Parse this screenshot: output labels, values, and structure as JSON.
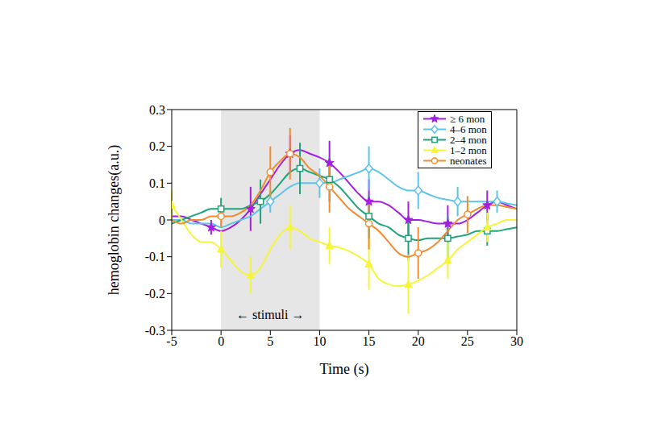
{
  "chart_data": {
    "type": "line",
    "xlabel": "Time (s)",
    "ylabel": "hemoglobin changes(a.u.)",
    "xlim": [
      -5,
      30
    ],
    "xticks": [
      -5,
      0,
      5,
      10,
      15,
      20,
      25,
      30
    ],
    "ylim": [
      -0.3,
      0.3
    ],
    "yticks": [
      -0.3,
      -0.2,
      -0.1,
      0,
      0.1,
      0.2,
      0.3
    ],
    "grid": false,
    "legend": "upper right",
    "stimulus": {
      "start": 0,
      "end": 10,
      "label": "← stimuli →"
    },
    "x": [
      -5,
      -4,
      -3,
      -2,
      -1,
      0,
      1,
      2,
      3,
      4,
      5,
      6,
      7,
      8,
      9,
      10,
      11,
      12,
      13,
      14,
      15,
      16,
      17,
      18,
      19,
      20,
      21,
      22,
      23,
      24,
      25,
      26,
      27,
      28,
      29,
      30
    ],
    "series": [
      {
        "name": "≥ 6 mon",
        "color": "#a31fe0",
        "marker": "star",
        "values": [
          0.01,
          0.01,
          0.0,
          -0.01,
          -0.02,
          -0.03,
          -0.02,
          0.0,
          0.03,
          0.07,
          0.11,
          0.15,
          0.18,
          0.19,
          0.18,
          0.17,
          0.155,
          0.13,
          0.1,
          0.07,
          0.05,
          0.05,
          0.04,
          0.02,
          0.0,
          0.0,
          -0.005,
          -0.01,
          -0.01,
          -0.01,
          0.0,
          0.02,
          0.04,
          0.05,
          0.04,
          0.03
        ],
        "errors": [
          null,
          null,
          null,
          null,
          0.02,
          null,
          null,
          null,
          0.06,
          null,
          null,
          null,
          0.05,
          null,
          null,
          null,
          0.06,
          null,
          null,
          null,
          0.06,
          null,
          null,
          null,
          0.05,
          null,
          null,
          null,
          0.05,
          null,
          null,
          null,
          0.04,
          null,
          null,
          null
        ]
      },
      {
        "name": "4–6 mon",
        "color": "#5cc3ea",
        "marker": "diamond",
        "values": [
          0.0,
          0.0,
          -0.01,
          -0.01,
          -0.01,
          -0.02,
          -0.01,
          0.0,
          0.01,
          0.03,
          0.05,
          0.07,
          0.09,
          0.1,
          0.1,
          0.1,
          0.1,
          0.11,
          0.12,
          0.13,
          0.14,
          0.13,
          0.11,
          0.09,
          0.08,
          0.08,
          0.07,
          0.06,
          0.055,
          0.05,
          0.05,
          0.05,
          0.05,
          0.05,
          0.045,
          0.04
        ],
        "errors": [
          null,
          null,
          null,
          null,
          null,
          null,
          null,
          null,
          null,
          null,
          0.03,
          null,
          null,
          null,
          null,
          0.04,
          null,
          null,
          null,
          null,
          0.06,
          null,
          null,
          null,
          null,
          0.05,
          null,
          null,
          null,
          0.04,
          null,
          null,
          null,
          0.03,
          null,
          null
        ]
      },
      {
        "name": "2–4 mon",
        "color": "#1fa37a",
        "marker": "square",
        "values": [
          -0.01,
          0.0,
          0.01,
          0.02,
          0.03,
          0.03,
          0.03,
          0.03,
          0.04,
          0.05,
          0.07,
          0.1,
          0.13,
          0.14,
          0.13,
          0.12,
          0.11,
          0.09,
          0.06,
          0.03,
          0.01,
          -0.01,
          -0.02,
          -0.04,
          -0.05,
          -0.055,
          -0.05,
          -0.05,
          -0.05,
          -0.045,
          -0.04,
          -0.03,
          -0.03,
          -0.03,
          -0.025,
          -0.02
        ],
        "errors": [
          null,
          null,
          null,
          null,
          null,
          0.03,
          null,
          null,
          null,
          0.06,
          null,
          null,
          null,
          0.07,
          null,
          null,
          0.06,
          null,
          null,
          null,
          0.06,
          null,
          null,
          null,
          0.06,
          null,
          null,
          null,
          0.06,
          null,
          null,
          null,
          0.04,
          null,
          null,
          null
        ]
      },
      {
        "name": "1–2 mon",
        "color": "#f5f53a",
        "marker": "triangle",
        "values": [
          0.04,
          0.0,
          -0.04,
          -0.06,
          -0.06,
          -0.08,
          -0.11,
          -0.14,
          -0.15,
          -0.13,
          -0.08,
          -0.04,
          -0.02,
          -0.03,
          -0.05,
          -0.06,
          -0.07,
          -0.075,
          -0.085,
          -0.1,
          -0.12,
          -0.16,
          -0.175,
          -0.18,
          -0.175,
          -0.165,
          -0.15,
          -0.13,
          -0.11,
          -0.08,
          -0.06,
          -0.04,
          -0.02,
          -0.01,
          0.0,
          0.0
        ],
        "errors": [
          0.04,
          null,
          null,
          null,
          null,
          0.05,
          null,
          null,
          0.05,
          null,
          null,
          null,
          0.06,
          null,
          null,
          null,
          0.05,
          null,
          null,
          null,
          0.07,
          null,
          null,
          null,
          0.08,
          null,
          null,
          null,
          0.05,
          null,
          null,
          null,
          0.04,
          null,
          null,
          null
        ]
      },
      {
        "name": "neonates",
        "color": "#f28c2e",
        "marker": "circle",
        "values": [
          0.0,
          -0.01,
          0.0,
          0.0,
          0.01,
          0.01,
          0.01,
          0.02,
          0.04,
          0.08,
          0.13,
          0.16,
          0.18,
          0.17,
          0.14,
          0.12,
          0.09,
          0.06,
          0.03,
          0.01,
          -0.01,
          -0.03,
          -0.06,
          -0.09,
          -0.1,
          -0.09,
          -0.08,
          -0.06,
          -0.03,
          0.0,
          0.015,
          0.03,
          0.04,
          0.04,
          0.035,
          0.03
        ],
        "errors": [
          null,
          null,
          null,
          null,
          null,
          0.03,
          null,
          null,
          null,
          null,
          0.07,
          null,
          0.07,
          null,
          null,
          null,
          0.07,
          null,
          null,
          null,
          0.07,
          null,
          null,
          null,
          null,
          0.07,
          null,
          null,
          null,
          null,
          0.05,
          null,
          null,
          null,
          null,
          null
        ]
      }
    ]
  }
}
